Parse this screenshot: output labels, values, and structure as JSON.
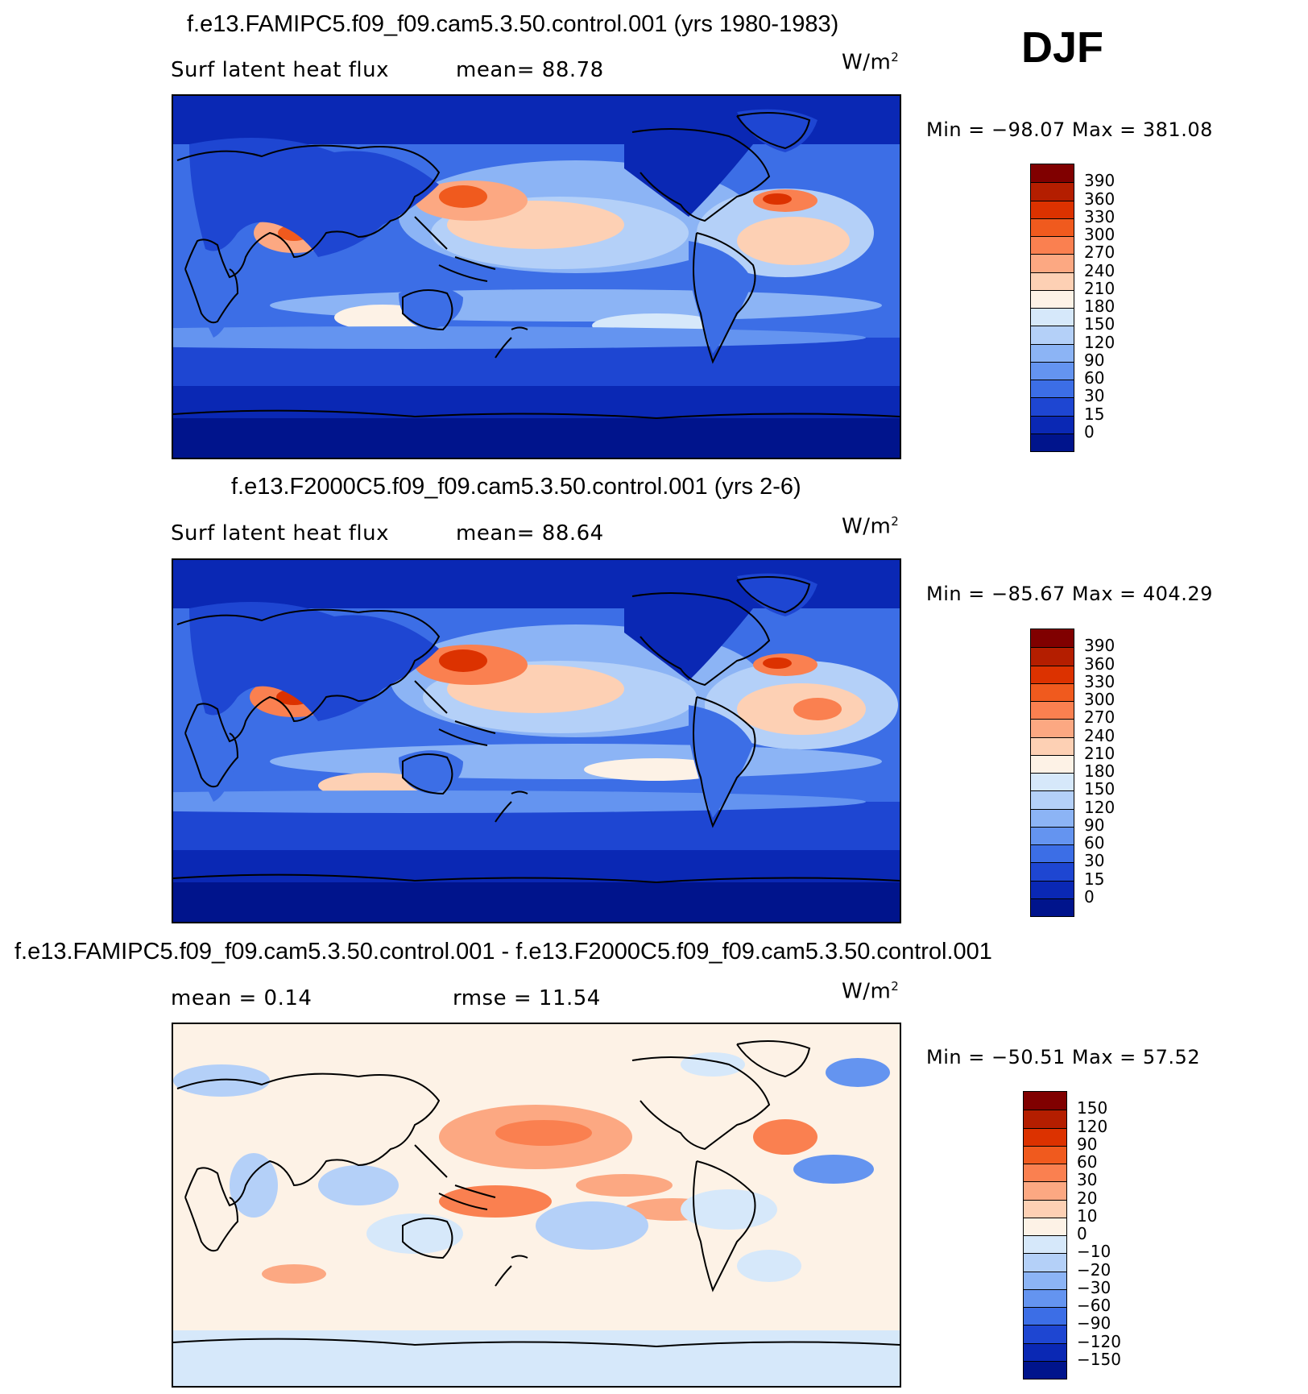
{
  "season": "DJF",
  "panels": [
    {
      "title": "f.e13.FAMIPC5.f09_f09.cam5.3.50.control.001 (yrs 1980-1983)",
      "left_label": "Surf latent heat flux",
      "mid_label": "mean=   88.78",
      "units": "W/m",
      "units_sup": "2",
      "minmax": "Min  =  −98.07  Max  =  381.08",
      "kind": "field"
    },
    {
      "title": "f.e13.F2000C5.f09_f09.cam5.3.50.control.001 (yrs 2-6)",
      "left_label": "Surf latent heat flux",
      "mid_label": "mean=   88.64",
      "units": "W/m",
      "units_sup": "2",
      "minmax": "Min  =  −85.67  Max  =  404.29",
      "kind": "field"
    },
    {
      "title": "f.e13.FAMIPC5.f09_f09.cam5.3.50.control.001 - f.e13.F2000C5.f09_f09.cam5.3.50.control.001",
      "left_label": "mean =     0.14",
      "mid_label": "rmse =    11.54",
      "units": "W/m",
      "units_sup": "2",
      "minmax": "Min  =  −50.51  Max  =    57.52",
      "kind": "diff"
    }
  ],
  "field_colorbar": {
    "levels": [
      "390",
      "360",
      "330",
      "300",
      "270",
      "240",
      "210",
      "180",
      "150",
      "120",
      "90",
      "60",
      "30",
      "15",
      "0"
    ],
    "colors": [
      "#800000",
      "#b41e00",
      "#dc3200",
      "#f05a1e",
      "#fa8050",
      "#fca882",
      "#fdd0b4",
      "#fdf2e6",
      "#d6e8fa",
      "#b4d0f8",
      "#8cb4f5",
      "#6494f0",
      "#3c6ee6",
      "#1e46d2",
      "#0a28b4",
      "#00148c"
    ]
  },
  "diff_colorbar": {
    "levels": [
      "150",
      "120",
      "90",
      "60",
      "30",
      "20",
      "10",
      "0",
      "−10",
      "−20",
      "−30",
      "−60",
      "−90",
      "−120",
      "−150"
    ],
    "colors": [
      "#800000",
      "#b41e00",
      "#dc3200",
      "#f05a1e",
      "#fa8050",
      "#fca882",
      "#fdd0b4",
      "#fdf2e6",
      "#d6e8fa",
      "#b4d0f8",
      "#8cb4f5",
      "#6494f0",
      "#3c6ee6",
      "#1e46d2",
      "#0a28b4",
      "#00148c"
    ]
  }
}
